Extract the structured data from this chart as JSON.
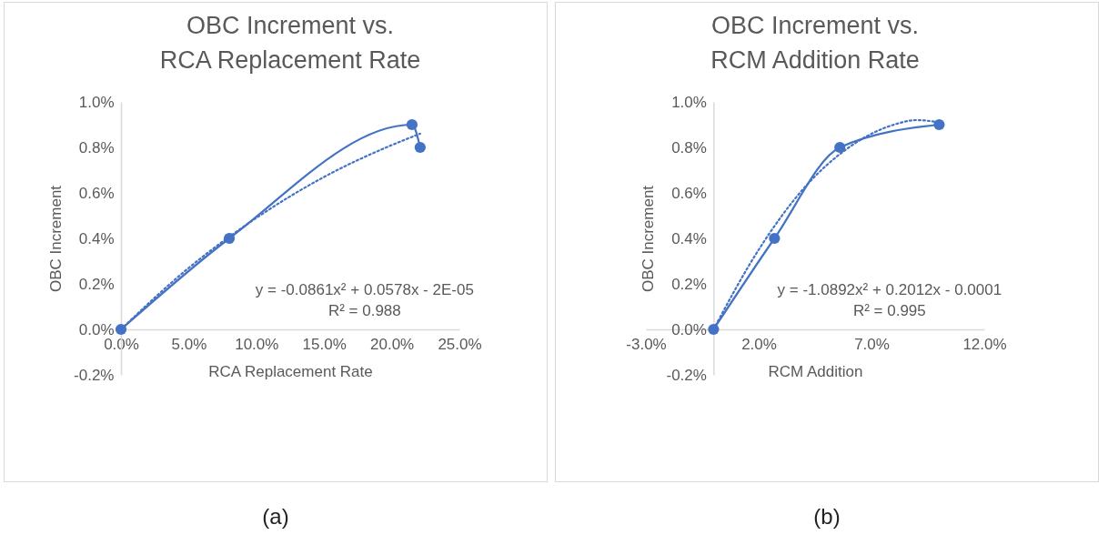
{
  "chart_data": [
    {
      "type": "line",
      "title": "OBC Increment vs. RCA Replacement Rate",
      "xlabel": "RCA Replacement Rate",
      "ylabel": "OBC Increment",
      "xlim": [
        0,
        25
      ],
      "ylim": [
        -0.2,
        1.0
      ],
      "xticks": [
        {
          "value": 0,
          "label": "0.0%"
        },
        {
          "value": 5,
          "label": "5.0%"
        },
        {
          "value": 10,
          "label": "10.0%"
        },
        {
          "value": 15,
          "label": "15.0%"
        },
        {
          "value": 20,
          "label": "20.0%"
        },
        {
          "value": 25,
          "label": "25.0%"
        }
      ],
      "yticks": [
        {
          "value": -0.2,
          "label": "-0.2%"
        },
        {
          "value": 0,
          "label": "0.0%"
        },
        {
          "value": 0.2,
          "label": "0.2%"
        },
        {
          "value": 0.4,
          "label": "0.4%"
        },
        {
          "value": 0.6,
          "label": "0.6%"
        },
        {
          "value": 0.8,
          "label": "0.8%"
        },
        {
          "value": 1.0,
          "label": "1.0%"
        }
      ],
      "marker": "circle",
      "line_style": "solid",
      "series": [
        {
          "color": "#4472c4",
          "x": [
            0,
            8,
            21.5,
            22.1
          ],
          "values": [
            0,
            0.4,
            0.9,
            0.8
          ]
        },
        {
          "type": "line",
          "line_style": "dotted",
          "marker": "none",
          "color": "#4472c4",
          "x": [
            0,
            5,
            10,
            15,
            20,
            22.1
          ],
          "values": [
            0,
            0.27,
            0.49,
            0.67,
            0.81,
            0.86
          ]
        }
      ],
      "annotations": [
        "y = -0.0861x² + 0.0578x - 2E-05",
        "R² = 0.988",
        "(a)"
      ]
    },
    {
      "type": "line",
      "title": "OBC Increment vs. RCM Addition Rate",
      "xlabel": "RCM Addition",
      "ylabel": "OBC Increment",
      "xlim": [
        -3,
        12
      ],
      "ylim": [
        -0.2,
        1.0
      ],
      "xticks": [
        {
          "value": -3,
          "label": "-3.0%"
        },
        {
          "value": 2,
          "label": "2.0%"
        },
        {
          "value": 7,
          "label": "7.0%"
        },
        {
          "value": 12,
          "label": "12.0%"
        }
      ],
      "yticks": [
        {
          "value": -0.2,
          "label": "-0.2%"
        },
        {
          "value": 0,
          "label": "0.0%"
        },
        {
          "value": 0.2,
          "label": "0.2%"
        },
        {
          "value": 0.4,
          "label": "0.4%"
        },
        {
          "value": 0.6,
          "label": "0.6%"
        },
        {
          "value": 0.8,
          "label": "0.8%"
        },
        {
          "value": 1.0,
          "label": "1.0%"
        }
      ],
      "marker": "circle",
      "line_style": "solid",
      "series": [
        {
          "color": "#4472c4",
          "x": [
            0,
            2.7,
            5.6,
            10
          ],
          "values": [
            0,
            0.4,
            0.8,
            0.9
          ]
        },
        {
          "type": "line",
          "line_style": "dotted",
          "marker": "none",
          "color": "#4472c4",
          "x": [
            0,
            2,
            4,
            6,
            8,
            9,
            10
          ],
          "values": [
            0,
            0.35,
            0.62,
            0.8,
            0.9,
            0.92,
            0.91
          ]
        }
      ],
      "annotations": [
        "y = -1.0892x² + 0.2012x - 0.0001",
        "R² = 0.995",
        "(b)"
      ]
    }
  ]
}
